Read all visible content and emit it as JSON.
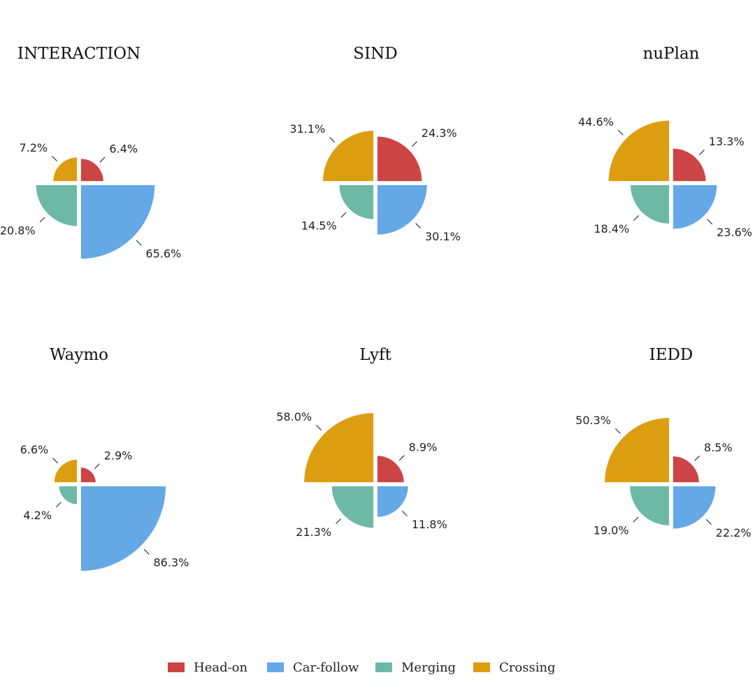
{
  "chart_data": {
    "type": "pie",
    "variant": "polar-area (rose)",
    "categories": [
      "Head-on",
      "Car-follow",
      "Merging",
      "Crossing"
    ],
    "colors": {
      "Head-on": "#cc4444",
      "Car-follow": "#64a8e6",
      "Merging": "#6eb8a6",
      "Crossing": "#dc9e10"
    },
    "legend": {
      "placement": "bottom-center",
      "items": [
        "Head-on",
        "Car-follow",
        "Merging",
        "Crossing"
      ]
    },
    "charts": [
      {
        "title": "INTERACTION",
        "values": [
          6.4,
          65.6,
          20.8,
          7.2
        ],
        "labels": [
          "6.4%",
          "65.6%",
          "20.8%",
          "7.2%"
        ]
      },
      {
        "title": "SIND",
        "values": [
          24.3,
          30.1,
          14.5,
          31.1
        ],
        "labels": [
          "24.3%",
          "30.1%",
          "14.5%",
          "31.1%"
        ]
      },
      {
        "title": "nuPlan",
        "values": [
          13.3,
          23.6,
          18.4,
          44.6
        ],
        "labels": [
          "13.3%",
          "23.6%",
          "18.4%",
          "44.6%"
        ]
      },
      {
        "title": "Waymo",
        "values": [
          2.9,
          86.3,
          4.2,
          6.6
        ],
        "labels": [
          "2.9%",
          "86.3%",
          "4.2%",
          "6.6%"
        ]
      },
      {
        "title": "Lyft",
        "values": [
          8.9,
          11.8,
          21.3,
          58.0
        ],
        "labels": [
          "8.9%",
          "11.8%",
          "21.3%",
          "58.0%"
        ]
      },
      {
        "title": "IEDD",
        "values": [
          8.5,
          22.2,
          19.0,
          50.3
        ],
        "labels": [
          "8.5%",
          "22.2%",
          "19.0%",
          "50.3%"
        ]
      }
    ]
  }
}
